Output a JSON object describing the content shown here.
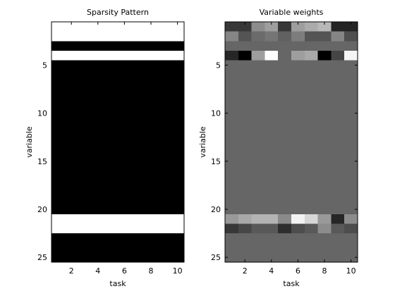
{
  "chart_data": [
    {
      "type": "heatmap",
      "title": "Sparsity Pattern",
      "xlabel": "task",
      "ylabel": "variable",
      "x_range": [
        0.5,
        10.5
      ],
      "y_range": [
        0.5,
        25.5
      ],
      "y_reversed": true,
      "x_ticks": [
        2,
        4,
        6,
        8,
        10
      ],
      "y_ticks": [
        5,
        10,
        15,
        20,
        25
      ],
      "colormap": "gray",
      "color_low": "#000000",
      "color_high": "#ffffff",
      "row_values": [
        1,
        1,
        0,
        1,
        0,
        0,
        0,
        0,
        0,
        0,
        0,
        0,
        0,
        0,
        0,
        0,
        0,
        0,
        0,
        0,
        1,
        1,
        0,
        0,
        0
      ]
    },
    {
      "type": "heatmap",
      "title": "Variable weights",
      "xlabel": "task",
      "ylabel": "variable",
      "x_range": [
        0.5,
        10.5
      ],
      "y_range": [
        0.5,
        25.5
      ],
      "y_reversed": true,
      "x_ticks": [
        2,
        4,
        6,
        8,
        10
      ],
      "y_ticks": [
        5,
        10,
        15,
        20,
        25
      ],
      "colormap": "gray",
      "background_value": 0.4,
      "nonzero_rows": {
        "1": [
          0.22,
          0.22,
          0.55,
          0.62,
          0.22,
          0.62,
          0.67,
          0.72,
          0.14,
          0.14
        ],
        "2": [
          0.52,
          0.33,
          0.42,
          0.46,
          0.38,
          0.49,
          0.33,
          0.33,
          0.52,
          0.31
        ],
        "4": [
          0.15,
          0.0,
          0.62,
          1.0,
          0.4,
          0.62,
          0.66,
          0.0,
          0.27,
          0.96
        ],
        "21": [
          0.6,
          0.66,
          0.7,
          0.7,
          0.54,
          0.95,
          0.84,
          0.6,
          0.15,
          0.55
        ],
        "22": [
          0.22,
          0.28,
          0.35,
          0.35,
          0.18,
          0.3,
          0.35,
          0.55,
          0.35,
          0.3
        ]
      }
    }
  ]
}
